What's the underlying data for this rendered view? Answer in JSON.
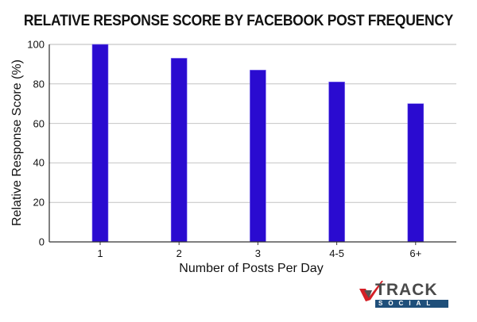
{
  "chart_data": {
    "type": "bar",
    "title": "RELATIVE RESPONSE SCORE BY FACEBOOK POST FREQUENCY",
    "xlabel": "Number of Posts Per Day",
    "ylabel": "Relative Response Score (%)",
    "categories": [
      "1",
      "2",
      "3",
      "4-5",
      "6+"
    ],
    "values": [
      100,
      93,
      87,
      81,
      70
    ],
    "ylim": [
      0,
      100
    ],
    "yticks": [
      0,
      20,
      40,
      60,
      80,
      100
    ],
    "grid": true,
    "legend": null,
    "bar_color": "#2a0bd0"
  },
  "logo": {
    "brand": "TRACK",
    "sub": "SOCIAL"
  }
}
